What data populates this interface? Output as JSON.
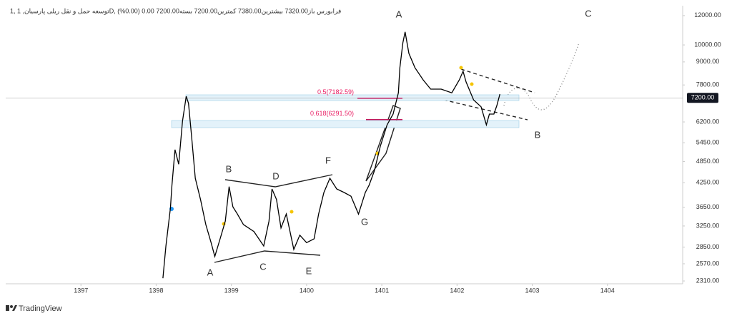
{
  "chart_data": {
    "type": "line",
    "header": "1, توسعه حمل و نقل ریلی پارسیان, 1D, فرابورس باز7320.00 بیشترین7380.00 کمترین7200.00 بسته7200.00 0.00 (0.00%)",
    "footer": "TradingView",
    "log_scale": true,
    "xlim": [
      1396,
      1405
    ],
    "xticks": [
      1397,
      1398,
      1399,
      1400,
      1401,
      1402,
      1403,
      1404
    ],
    "ylim": [
      2270,
      12760
    ],
    "yticks": [
      {
        "value": 2310,
        "label": "2310.00"
      },
      {
        "value": 2570,
        "label": "2570.00"
      },
      {
        "value": 2850,
        "label": "2850.00"
      },
      {
        "value": 3250,
        "label": "3250.00"
      },
      {
        "value": 3650,
        "label": "3650.00"
      },
      {
        "value": 4250,
        "label": "4250.00"
      },
      {
        "value": 4850,
        "label": "4850.00"
      },
      {
        "value": 5450,
        "label": "5450.00"
      },
      {
        "value": 6200,
        "label": "6200.00"
      },
      {
        "value": 7800,
        "label": "7800.00"
      },
      {
        "value": 9000,
        "label": "9000.00"
      },
      {
        "value": 10000,
        "label": "10000.00"
      },
      {
        "value": 12000,
        "label": "12000.00"
      }
    ],
    "last_price": {
      "value": 7200,
      "label": "7200.00"
    },
    "fib_levels": [
      {
        "value": 7182.59,
        "label": "0.5(7182.59)"
      },
      {
        "value": 6291.5,
        "label": "0.618(6291.50)"
      }
    ],
    "annotations": [
      "A",
      "B",
      "C",
      "D",
      "E",
      "F",
      "G",
      "A",
      "B",
      "C"
    ],
    "series": [
      {
        "color": "#000000",
        "x": [
          1398.09,
          1398.13,
          1398.19,
          1398.21,
          1398.25,
          1398.3,
          1398.35,
          1398.4,
          1398.43,
          1398.47,
          1398.52,
          1398.59,
          1398.66,
          1398.73,
          1398.78,
          1398.85,
          1398.92,
          1398.97,
          1399.02,
          1399.08,
          1399.16,
          1399.3,
          1399.43,
          1399.5,
          1399.54,
          1399.6,
          1399.66,
          1399.73,
          1399.83,
          1399.91,
          1400.0,
          1400.1,
          1400.16,
          1400.23,
          1400.31,
          1400.4,
          1400.5,
          1400.59,
          1400.69,
          1400.78,
          1400.83,
          1400.9,
          1400.98,
          1401.07,
          1401.15,
          1401.22,
          1401.24,
          1401.28,
          1401.31,
          1401.36,
          1401.44,
          1401.55,
          1401.65,
          1401.79,
          1401.93,
          1402.03,
          1402.08,
          1402.12,
          1402.22,
          1402.32,
          1402.39,
          1402.43,
          1402.49,
          1402.53,
          1402.57
        ],
        "values": [
          2350,
          2870,
          3630,
          4180,
          5220,
          4770,
          6230,
          7270,
          6960,
          5700,
          4370,
          3830,
          3280,
          2930,
          2690,
          3000,
          3350,
          4150,
          3660,
          3500,
          3280,
          3140,
          2870,
          3350,
          4090,
          3830,
          3210,
          3500,
          2810,
          3070,
          2930,
          3000,
          3500,
          4000,
          4370,
          4090,
          4000,
          3910,
          3500,
          4000,
          4180,
          4570,
          5330,
          6090,
          6510,
          7430,
          8690,
          10140,
          10840,
          9490,
          8690,
          8050,
          7600,
          7600,
          7430,
          8050,
          8490,
          7950,
          7110,
          6810,
          6090,
          6510,
          6510,
          6870,
          7370
        ]
      }
    ]
  }
}
